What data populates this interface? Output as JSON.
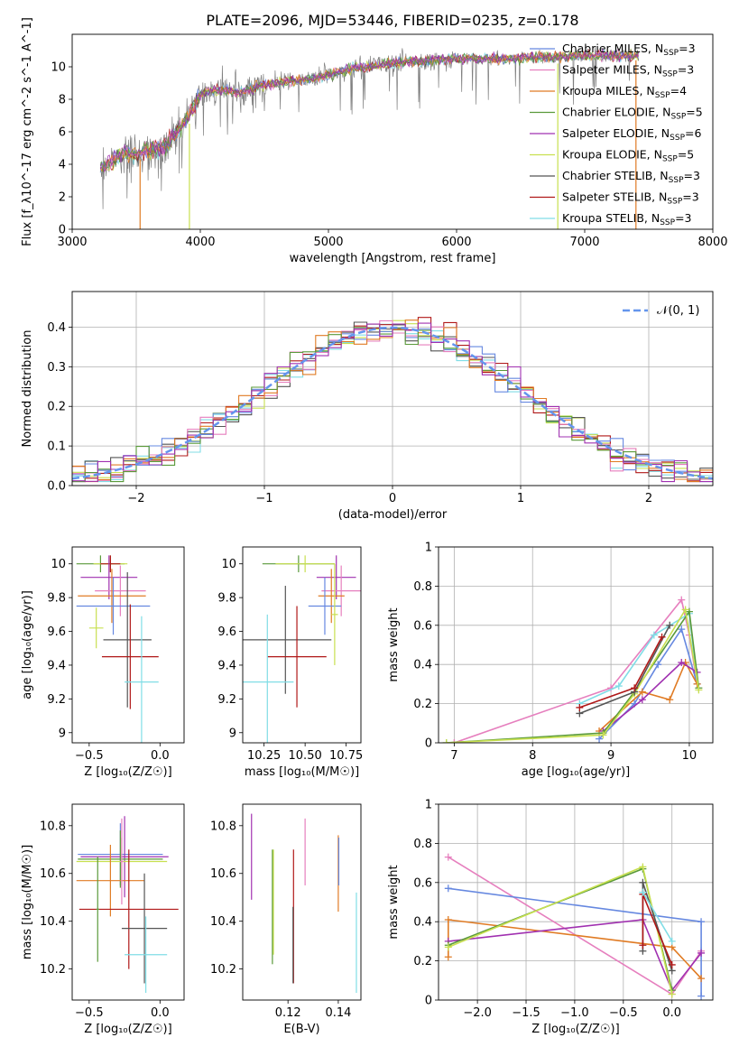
{
  "figure_title": "PLATE=2096, MJD=53446, FIBERID=0235, z=0.178",
  "colors": {
    "chabrier_miles": "#6688e0",
    "salpeter_miles": "#e67fbe",
    "kroupa_miles": "#e07b24",
    "chabrier_elodie": "#5a9a3a",
    "salpeter_elodie": "#a030b0",
    "kroupa_elodie": "#c8e050",
    "chabrier_stelib": "#555555",
    "salpeter_stelib": "#b01818",
    "kroupa_stelib": "#80dde6",
    "data": "#808080",
    "grid": "#b0b0b0",
    "normal_curve": "#6495ed"
  },
  "chart_data": [
    {
      "type": "line",
      "id": "spectrum",
      "xlabel": "wavelength [Angstrom, rest frame]",
      "ylabel": "Flux [f_λ10^-17 erg cm^-2 s^-1 A^-1]",
      "xlim": [
        3000,
        8000
      ],
      "ylim": [
        0,
        12
      ],
      "xticks": [
        3000,
        4000,
        5000,
        6000,
        7000,
        8000
      ],
      "yticks": [
        0,
        2,
        4,
        6,
        8,
        10
      ],
      "grid": false,
      "legend_position": "top-right",
      "legend": [
        {
          "label": "Chabrier MILES, N",
          "sub": "SSP",
          "suffix": "=3",
          "color_key": "chabrier_miles"
        },
        {
          "label": "Salpeter MILES, N",
          "sub": "SSP",
          "suffix": "=3",
          "color_key": "salpeter_miles"
        },
        {
          "label": "Kroupa MILES, N",
          "sub": "SSP",
          "suffix": "=4",
          "color_key": "kroupa_miles"
        },
        {
          "label": "Chabrier ELODIE, N",
          "sub": "SSP",
          "suffix": "=5",
          "color_key": "chabrier_elodie"
        },
        {
          "label": "Salpeter ELODIE, N",
          "sub": "SSP",
          "suffix": "=6",
          "color_key": "salpeter_elodie"
        },
        {
          "label": "Kroupa ELODIE, N",
          "sub": "SSP",
          "suffix": "=5",
          "color_key": "kroupa_elodie"
        },
        {
          "label": "Chabrier STELIB, N",
          "sub": "SSP",
          "suffix": "=3",
          "color_key": "chabrier_stelib"
        },
        {
          "label": "Salpeter STELIB, N",
          "sub": "SSP",
          "suffix": "=3",
          "color_key": "salpeter_stelib"
        },
        {
          "label": "Kroupa STELIB, N",
          "sub": "SSP",
          "suffix": "=3",
          "color_key": "kroupa_stelib"
        }
      ],
      "continuum": {
        "x": [
          3220,
          3400,
          3500,
          3600,
          3700,
          3800,
          3900,
          4000,
          4100,
          4200,
          4300,
          4500,
          4700,
          4900,
          5000,
          5200,
          5400,
          5600,
          5800,
          6000,
          6200,
          6400,
          6600,
          6800,
          7000,
          7200,
          7400
        ],
        "y": [
          3.7,
          4.7,
          4.6,
          4.9,
          5.0,
          5.8,
          6.9,
          8.3,
          8.6,
          8.5,
          8.4,
          8.9,
          9.1,
          9.3,
          9.5,
          9.9,
          10.1,
          10.3,
          10.4,
          10.5,
          10.5,
          10.5,
          10.6,
          10.6,
          10.7,
          10.7,
          10.7
        ]
      },
      "model_spikes": [
        {
          "x": 3530,
          "y0": 0,
          "y1": 4.3,
          "color_key": "kroupa_miles"
        },
        {
          "x": 3915,
          "y0": 0,
          "y1": 6.5,
          "color_key": "kroupa_elodie"
        },
        {
          "x": 6790,
          "y0": 0,
          "y1": 10.2,
          "color_key": "kroupa_elodie"
        },
        {
          "x": 7400,
          "y0": 0,
          "y1": 10.4,
          "color_key": "kroupa_miles"
        }
      ]
    },
    {
      "type": "area",
      "id": "residuals",
      "xlabel": "(data-model)/error",
      "ylabel": "Normed distribution",
      "xlim": [
        -2.5,
        2.5
      ],
      "ylim": [
        0,
        0.49
      ],
      "xticks": [
        -2,
        -1,
        0,
        1,
        2
      ],
      "xtick_labels": [
        "−2",
        "−1",
        "0",
        "1",
        "2"
      ],
      "yticks": [
        0.0,
        0.1,
        0.2,
        0.3,
        0.4
      ],
      "grid": true,
      "legend_position": "top-right",
      "legend": [
        {
          "label": "𝒩(0, 1)",
          "color_key": "normal_curve",
          "style": "dashed"
        }
      ],
      "histogram": {
        "bin_start": -2.5,
        "bin_width": 0.1,
        "n_bins": 50
      },
      "normal_pdf": {
        "mu": 0,
        "sigma": 1
      }
    },
    {
      "type": "scatter",
      "id": "age_vs_Z",
      "xlabel": "Z [log₁₀(Z/Z☉)]",
      "ylabel": "age  [log₁₀(age/yr)]",
      "xlim": [
        -0.62,
        0.17
      ],
      "ylim": [
        8.94,
        10.1
      ],
      "xticks": [
        -0.5,
        0.0
      ],
      "xtick_labels": [
        "−0.5",
        "0.0"
      ],
      "yticks": [
        9.0,
        9.2,
        9.4,
        9.6,
        9.8,
        10.0
      ],
      "error_crosses": [
        {
          "x": -0.42,
          "xerr": 0.17,
          "y": 10.0,
          "yerr": 0.05,
          "color_key": "chabrier_elodie"
        },
        {
          "x": -0.35,
          "xerr": 0.12,
          "y": 10.0,
          "yerr": 0.05,
          "color_key": "kroupa_elodie"
        },
        {
          "x": -0.35,
          "xerr": 0.07,
          "y": 10.0,
          "yerr": 0.05,
          "color_key": "salpeter_stelib"
        },
        {
          "x": -0.36,
          "xerr": 0.2,
          "y": 9.92,
          "yerr": 0.13,
          "color_key": "salpeter_elodie"
        },
        {
          "x": -0.28,
          "xerr": 0.18,
          "y": 9.84,
          "yerr": 0.15,
          "color_key": "salpeter_miles"
        },
        {
          "x": -0.34,
          "xerr": 0.24,
          "y": 9.81,
          "yerr": 0.16,
          "color_key": "kroupa_miles"
        },
        {
          "x": -0.33,
          "xerr": 0.26,
          "y": 9.75,
          "yerr": 0.17,
          "color_key": "chabrier_miles"
        },
        {
          "x": -0.23,
          "xerr": 0.17,
          "y": 9.55,
          "yerr": 0.4,
          "color_key": "chabrier_stelib"
        },
        {
          "x": -0.21,
          "xerr": 0.2,
          "y": 9.45,
          "yerr": 0.31,
          "color_key": "salpeter_stelib"
        },
        {
          "x": -0.13,
          "xerr": 0.12,
          "y": 9.3,
          "yerr": 0.39,
          "color_key": "kroupa_stelib"
        },
        {
          "x": -0.45,
          "xerr": 0.05,
          "y": 9.62,
          "yerr": 0.12,
          "color_key": "kroupa_elodie"
        }
      ]
    },
    {
      "type": "scatter",
      "id": "age_vs_mass",
      "xlabel": "mass [log₁₀(M/M☉)]",
      "ylabel": "",
      "xlim": [
        10.12,
        10.84
      ],
      "ylim": [
        8.94,
        10.1
      ],
      "xticks": [
        10.25,
        10.5,
        10.75
      ],
      "xtick_labels": [
        "10.25",
        "10.50",
        "10.75"
      ],
      "yticks": [
        9.0,
        9.2,
        9.4,
        9.6,
        9.8,
        10.0
      ],
      "error_crosses": [
        {
          "x": 10.46,
          "xerr": 0.22,
          "y": 10.0,
          "yerr": 0.05,
          "color_key": "chabrier_elodie"
        },
        {
          "x": 10.5,
          "xerr": 0.18,
          "y": 10.0,
          "yerr": 0.05,
          "color_key": "kroupa_elodie"
        },
        {
          "x": 10.69,
          "xerr": 0.12,
          "y": 9.92,
          "yerr": 0.13,
          "color_key": "salpeter_elodie"
        },
        {
          "x": 10.72,
          "xerr": 0.12,
          "y": 9.84,
          "yerr": 0.15,
          "color_key": "salpeter_miles"
        },
        {
          "x": 10.66,
          "xerr": 0.08,
          "y": 9.81,
          "yerr": 0.16,
          "color_key": "kroupa_miles"
        },
        {
          "x": 10.62,
          "xerr": 0.1,
          "y": 9.75,
          "yerr": 0.17,
          "color_key": "chabrier_miles"
        },
        {
          "x": 10.38,
          "xerr": 0.28,
          "y": 9.55,
          "yerr": 0.32,
          "color_key": "chabrier_stelib"
        },
        {
          "x": 10.45,
          "xerr": 0.18,
          "y": 9.45,
          "yerr": 0.3,
          "color_key": "salpeter_stelib"
        },
        {
          "x": 10.27,
          "xerr": 0.16,
          "y": 9.3,
          "yerr": 0.4,
          "color_key": "kroupa_stelib"
        },
        {
          "x": 10.68,
          "xerr": 0.02,
          "y": 9.7,
          "yerr": 0.3,
          "color_key": "kroupa_elodie"
        }
      ]
    },
    {
      "type": "line",
      "id": "mass_weight_vs_age",
      "xlabel": "age  [log₁₀(age/yr)]",
      "ylabel": "mass weight",
      "xlim": [
        6.8,
        10.3
      ],
      "ylim": [
        0,
        1.0
      ],
      "xticks": [
        7,
        8,
        9,
        10
      ],
      "yticks": [
        0.0,
        0.2,
        0.4,
        0.6,
        0.8,
        1.0
      ],
      "grid": true,
      "series": [
        {
          "color_key": "salpeter_miles",
          "x": [
            7.0,
            9.0,
            9.9,
            10.0,
            10.1
          ],
          "y": [
            0.0,
            0.28,
            0.73,
            0.55,
            0.3
          ]
        },
        {
          "color_key": "kroupa_stelib",
          "x": [
            8.6,
            9.1,
            9.55,
            10.0,
            10.1
          ],
          "y": [
            0.2,
            0.29,
            0.55,
            0.66,
            0.3
          ]
        },
        {
          "color_key": "chabrier_miles",
          "x": [
            8.85,
            9.3,
            9.6,
            9.9,
            10.1
          ],
          "y": [
            0.02,
            0.2,
            0.4,
            0.58,
            0.3
          ]
        },
        {
          "color_key": "kroupa_miles",
          "x": [
            8.85,
            9.4,
            9.75,
            9.95,
            10.1
          ],
          "y": [
            0.06,
            0.26,
            0.22,
            0.41,
            0.3
          ]
        },
        {
          "color_key": "salpeter_elodie",
          "x": [
            8.9,
            9.4,
            9.9,
            10.1
          ],
          "y": [
            0.06,
            0.22,
            0.41,
            0.36
          ]
        },
        {
          "color_key": "chabrier_elodie",
          "x": [
            6.9,
            8.9,
            9.3,
            10.0,
            10.12
          ],
          "y": [
            0.0,
            0.05,
            0.26,
            0.67,
            0.28
          ]
        },
        {
          "color_key": "kroupa_elodie",
          "x": [
            6.9,
            8.9,
            9.3,
            9.95,
            10.12
          ],
          "y": [
            0.0,
            0.04,
            0.25,
            0.68,
            0.27
          ]
        },
        {
          "color_key": "chabrier_stelib",
          "x": [
            8.6,
            9.3,
            9.75
          ],
          "y": [
            0.15,
            0.26,
            0.6
          ]
        },
        {
          "color_key": "salpeter_stelib",
          "x": [
            8.6,
            9.3,
            9.65
          ],
          "y": [
            0.18,
            0.28,
            0.54
          ]
        }
      ]
    },
    {
      "type": "scatter",
      "id": "mass_vs_Z",
      "xlabel": "Z [log₁₀(Z/Z☉)]",
      "ylabel": "mass [log₁₀(M/M☉)]",
      "xlim": [
        -0.62,
        0.17
      ],
      "ylim": [
        10.07,
        10.89
      ],
      "xticks": [
        -0.5,
        0.0
      ],
      "xtick_labels": [
        "−0.5",
        "0.0"
      ],
      "yticks": [
        10.2,
        10.4,
        10.6,
        10.8
      ],
      "error_crosses": [
        {
          "x": -0.28,
          "xerr": 0.3,
          "y": 10.68,
          "yerr": 0.13,
          "color_key": "chabrier_miles"
        },
        {
          "x": -0.25,
          "xerr": 0.31,
          "y": 10.67,
          "yerr": 0.17,
          "color_key": "salpeter_elodie"
        },
        {
          "x": -0.28,
          "xerr": 0.3,
          "y": 10.66,
          "yerr": 0.12,
          "color_key": "chabrier_elodie"
        },
        {
          "x": -0.27,
          "xerr": 0.32,
          "y": 10.65,
          "yerr": 0.1,
          "color_key": "kroupa_elodie"
        },
        {
          "x": -0.35,
          "xerr": 0.24,
          "y": 10.57,
          "yerr": 0.15,
          "color_key": "kroupa_miles"
        },
        {
          "x": -0.22,
          "xerr": 0.35,
          "y": 10.45,
          "yerr": 0.25,
          "color_key": "salpeter_stelib"
        },
        {
          "x": -0.11,
          "xerr": 0.16,
          "y": 10.37,
          "yerr": 0.23,
          "color_key": "chabrier_stelib"
        },
        {
          "x": -0.1,
          "xerr": 0.15,
          "y": 10.26,
          "yerr": 0.16,
          "color_key": "kroupa_stelib"
        },
        {
          "x": -0.27,
          "xerr": 0.01,
          "y": 10.65,
          "yerr": 0.18,
          "color_key": "salpeter_miles"
        },
        {
          "x": -0.44,
          "xerr": 0.01,
          "y": 10.45,
          "yerr": 0.22,
          "color_key": "chabrier_elodie"
        }
      ]
    },
    {
      "type": "scatter",
      "id": "mass_vs_ebv",
      "xlabel": "E(B-V)",
      "ylabel": "",
      "xlim": [
        0.102,
        0.149
      ],
      "ylim": [
        10.07,
        10.89
      ],
      "xticks": [
        0.12,
        0.14
      ],
      "xtick_labels": [
        "0.12",
        "0.14"
      ],
      "yticks": [
        10.2,
        10.4,
        10.6,
        10.8
      ],
      "error_bars": [
        {
          "x": 0.1055,
          "y": 10.67,
          "yerr": 0.18,
          "color_key": "salpeter_elodie"
        },
        {
          "x": 0.1138,
          "y": 10.46,
          "yerr": 0.24,
          "color_key": "chabrier_elodie"
        },
        {
          "x": 0.1142,
          "y": 10.48,
          "yerr": 0.22,
          "color_key": "kroupa_elodie"
        },
        {
          "x": 0.1222,
          "y": 10.42,
          "yerr": 0.28,
          "color_key": "salpeter_stelib"
        },
        {
          "x": 0.122,
          "y": 10.3,
          "yerr": 0.16,
          "color_key": "chabrier_stelib"
        },
        {
          "x": 0.1268,
          "y": 10.69,
          "yerr": 0.14,
          "color_key": "salpeter_miles"
        },
        {
          "x": 0.14,
          "y": 10.6,
          "yerr": 0.16,
          "color_key": "kroupa_miles"
        },
        {
          "x": 0.1402,
          "y": 10.65,
          "yerr": 0.1,
          "color_key": "chabrier_miles"
        },
        {
          "x": 0.1472,
          "y": 10.31,
          "yerr": 0.21,
          "color_key": "kroupa_stelib"
        }
      ]
    },
    {
      "type": "line",
      "id": "mass_weight_vs_Z",
      "xlabel": "Z [log₁₀(Z/Z☉)]",
      "ylabel": "mass weight",
      "xlim": [
        -2.4,
        0.42
      ],
      "ylim": [
        0,
        1.0
      ],
      "xticks": [
        -2.0,
        -1.5,
        -1.0,
        -0.5,
        0.0
      ],
      "xtick_labels": [
        "−2.0",
        "−1.5",
        "−1.0",
        "−0.5",
        "0.0"
      ],
      "yticks": [
        0.0,
        0.2,
        0.4,
        0.6,
        0.8,
        1.0
      ],
      "grid": true,
      "series": [
        {
          "color_key": "salpeter_miles",
          "x": [
            -2.3,
            0.0,
            0.3
          ],
          "y": [
            0.73,
            0.03,
            0.25
          ]
        },
        {
          "color_key": "chabrier_miles",
          "x": [
            -2.3,
            0.3,
            0.3
          ],
          "y": [
            0.57,
            0.4,
            0.02
          ]
        },
        {
          "color_key": "kroupa_miles",
          "x": [
            -2.3,
            -2.3,
            0.0,
            0.3
          ],
          "y": [
            0.22,
            0.41,
            0.27,
            0.11
          ]
        },
        {
          "color_key": "salpeter_elodie",
          "x": [
            -2.3,
            -0.3,
            0.0,
            0.3
          ],
          "y": [
            0.3,
            0.41,
            0.05,
            0.24
          ]
        },
        {
          "color_key": "chabrier_elodie",
          "x": [
            -2.3,
            -0.3,
            0.0
          ],
          "y": [
            0.28,
            0.67,
            0.05
          ]
        },
        {
          "color_key": "kroupa_elodie",
          "x": [
            -2.3,
            -0.3,
            0.0
          ],
          "y": [
            0.27,
            0.68,
            0.03
          ]
        },
        {
          "color_key": "chabrier_stelib",
          "x": [
            -0.3,
            -0.3,
            0.0
          ],
          "y": [
            0.25,
            0.6,
            0.15
          ]
        },
        {
          "color_key": "salpeter_stelib",
          "x": [
            -0.3,
            -0.3,
            0.0
          ],
          "y": [
            0.28,
            0.54,
            0.18
          ]
        },
        {
          "color_key": "kroupa_stelib",
          "x": [
            -0.3,
            0.0
          ],
          "y": [
            0.55,
            0.3
          ]
        }
      ]
    }
  ]
}
